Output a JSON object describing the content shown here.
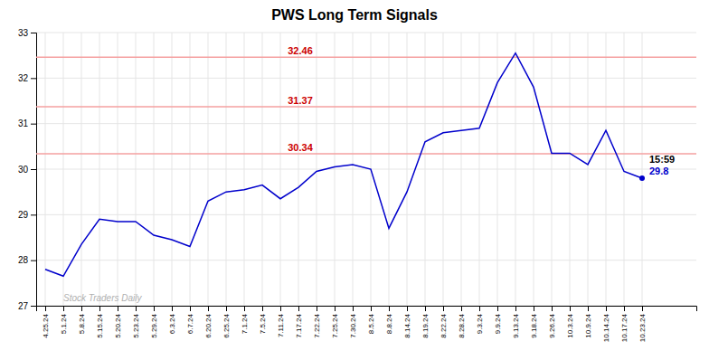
{
  "chart_data": {
    "type": "line",
    "title": "PWS Long Term Signals",
    "categories": [
      "4.25.24",
      "5.1.24",
      "5.8.24",
      "5.15.24",
      "5.20.24",
      "5.23.24",
      "5.29.24",
      "6.3.24",
      "6.7.24",
      "6.20.24",
      "6.25.24",
      "7.1.24",
      "7.5.24",
      "7.11.24",
      "7.17.24",
      "7.22.24",
      "7.25.24",
      "7.30.24",
      "8.5.24",
      "8.8.24",
      "8.14.24",
      "8.19.24",
      "8.22.24",
      "8.28.24",
      "9.3.24",
      "9.9.24",
      "9.13.24",
      "9.18.24",
      "9.26.24",
      "10.3.24",
      "10.9.24",
      "10.14.24",
      "10.17.24",
      "10.23.24"
    ],
    "values": [
      27.8,
      27.65,
      28.35,
      28.9,
      28.85,
      28.85,
      28.55,
      28.45,
      28.3,
      29.3,
      29.5,
      29.55,
      29.65,
      29.35,
      29.6,
      29.95,
      30.05,
      30.1,
      30.0,
      28.7,
      29.5,
      30.6,
      30.8,
      30.85,
      30.9,
      31.9,
      32.55,
      31.8,
      30.35,
      30.35,
      30.1,
      30.85,
      29.95,
      29.8
    ],
    "color": "#0000cc",
    "ylim": [
      27,
      33
    ],
    "yticks": [
      27,
      28,
      29,
      30,
      31,
      32,
      33
    ],
    "grid": true,
    "hlines": [
      {
        "value": 32.46,
        "label": "32.46",
        "color": "#f5a0a0",
        "label_color": "#cc0000"
      },
      {
        "value": 31.37,
        "label": "31.37",
        "color": "#f5a0a0",
        "label_color": "#cc0000"
      },
      {
        "value": 30.34,
        "label": "30.34",
        "color": "#f5a0a0",
        "label_color": "#cc0000"
      }
    ],
    "annotations": [
      {
        "text": "Stock Traders Daily",
        "color": "#b0b0b0"
      },
      {
        "text": "15:59",
        "color": "#000000"
      },
      {
        "text": "29.8",
        "color": "#0000cc"
      }
    ]
  }
}
